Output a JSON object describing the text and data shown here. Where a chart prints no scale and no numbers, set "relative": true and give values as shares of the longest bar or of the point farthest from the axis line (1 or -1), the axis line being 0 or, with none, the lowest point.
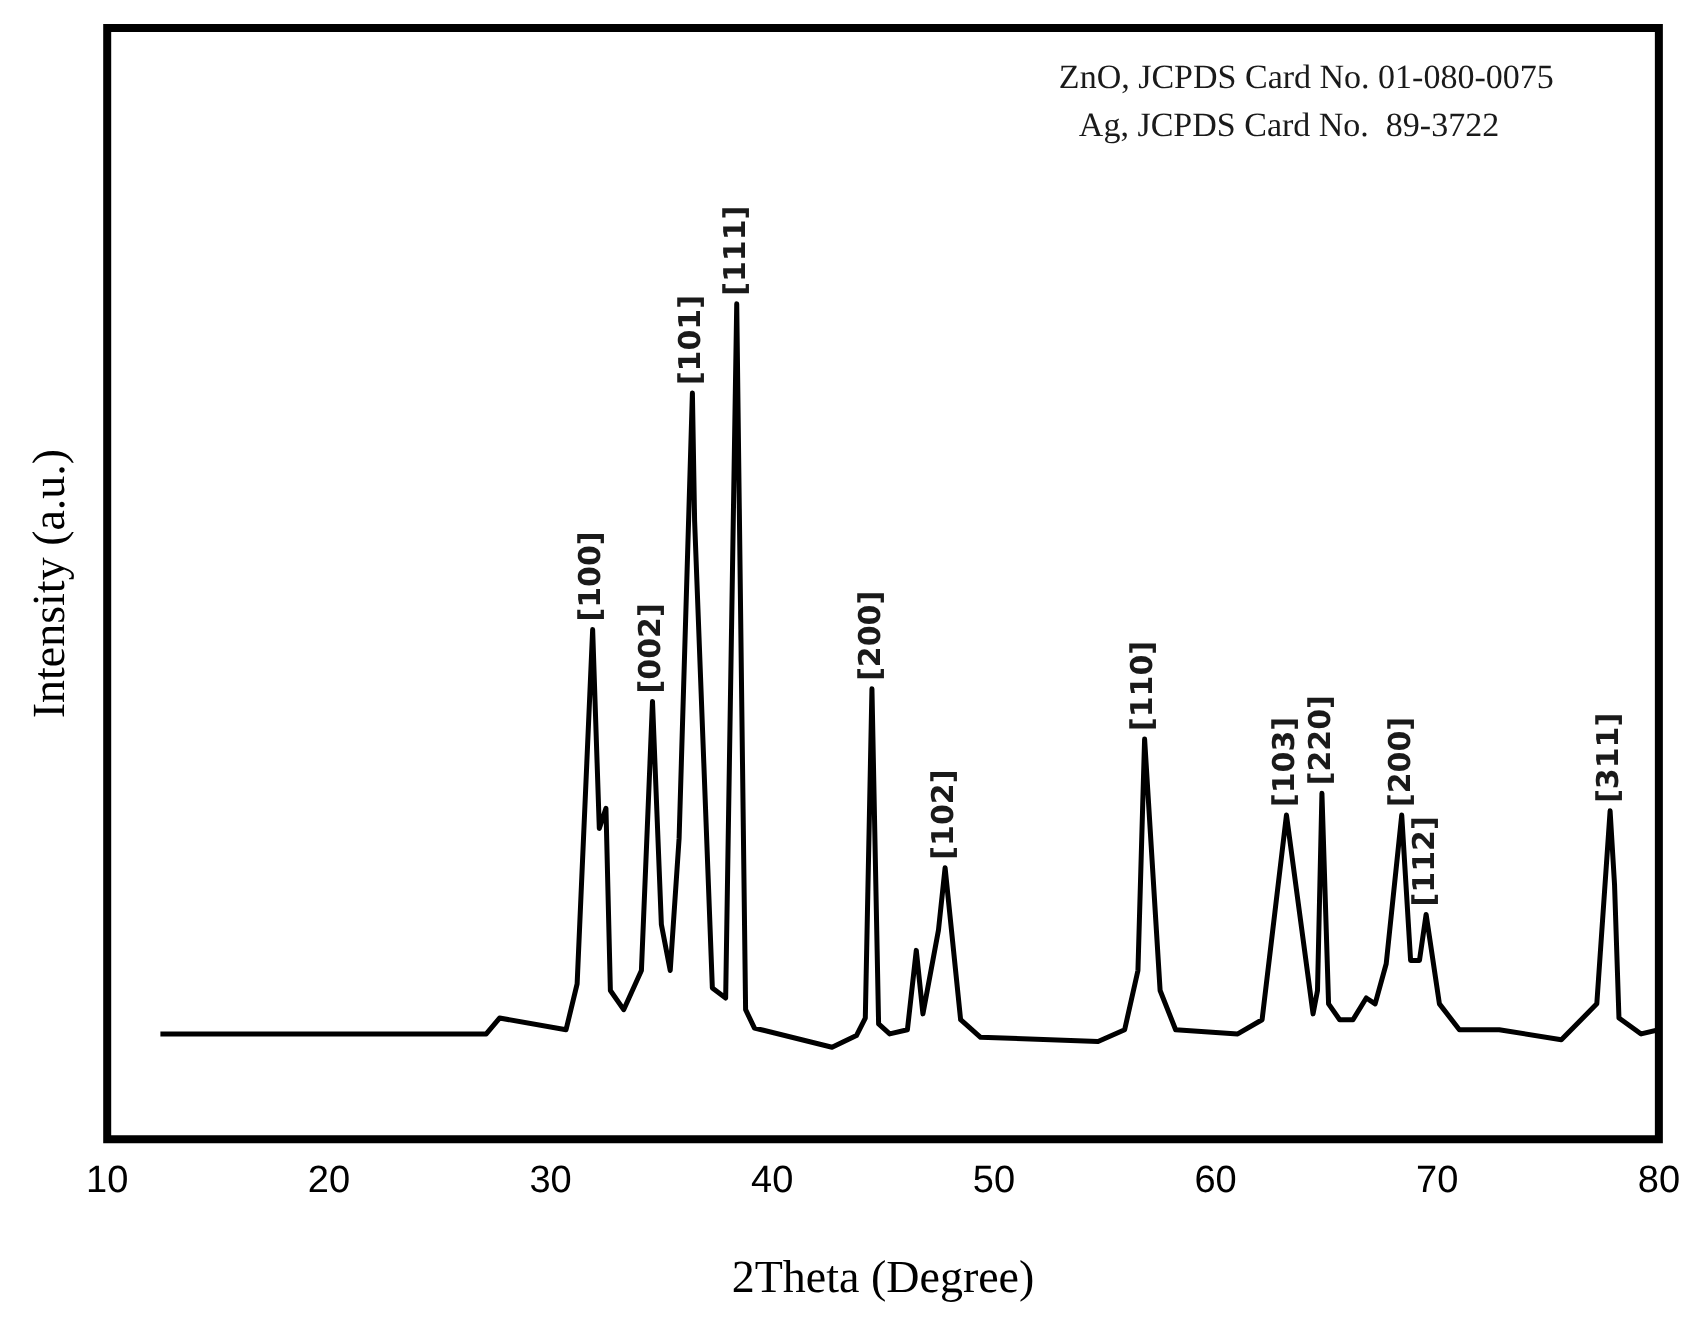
{
  "chart_data": {
    "type": "line",
    "xlabel": "2Theta (Degree)",
    "ylabel": "Intensity (a.u.)",
    "relative": true,
    "xlim": [
      10,
      80
    ],
    "xticks": [
      10,
      20,
      30,
      40,
      50,
      60,
      70,
      80
    ],
    "tick_labels": "x",
    "grid": false,
    "marker": "none",
    "line_style": "solid",
    "series": [
      {
        "color": "#000000",
        "x": [
          12.4,
          27.1,
          27.7,
          30.7,
          31.2,
          31.9,
          32.2,
          32.5,
          32.7,
          33.3,
          34.1,
          34.6,
          35.0,
          35.4,
          35.8,
          36.4,
          36.5,
          37.3,
          37.9,
          38.4,
          38.8,
          39.2,
          42.7,
          43.8,
          44.2,
          44.5,
          44.8,
          45.3,
          46.1,
          46.5,
          46.8,
          47.5,
          47.8,
          48.5,
          49.4,
          54.7,
          55.9,
          56.5,
          56.8,
          57.5,
          58.2,
          61.0,
          62.1,
          63.2,
          64.4,
          64.6,
          64.8,
          65.1,
          65.6,
          66.2,
          66.8,
          67.2,
          67.7,
          68.4,
          68.8,
          69.2,
          69.5,
          70.1,
          71.0,
          72.8,
          75.6,
          77.2,
          77.8,
          78.0,
          78.2,
          79.2,
          80.0
        ],
        "values": [
          0.126,
          0.126,
          0.145,
          0.131,
          0.186,
          0.61,
          0.372,
          0.396,
          0.178,
          0.155,
          0.202,
          0.524,
          0.257,
          0.202,
          0.36,
          0.893,
          0.74,
          0.181,
          0.169,
          1.0,
          0.155,
          0.133,
          0.11,
          0.124,
          0.145,
          0.539,
          0.138,
          0.126,
          0.131,
          0.226,
          0.15,
          0.25,
          0.325,
          0.143,
          0.122,
          0.117,
          0.131,
          0.202,
          0.479,
          0.178,
          0.131,
          0.126,
          0.143,
          0.388,
          0.15,
          0.178,
          0.414,
          0.162,
          0.143,
          0.143,
          0.169,
          0.162,
          0.21,
          0.388,
          0.214,
          0.214,
          0.269,
          0.162,
          0.131,
          0.131,
          0.119,
          0.162,
          0.393,
          0.305,
          0.145,
          0.126,
          0.131
        ]
      }
    ],
    "annotations": [
      "ZnO, JCPDS Card No. 01-080-0075",
      "Ag, JCPDS Card No.  89-3722",
      {
        "text": "[100]",
        "x": 31.9,
        "y": 0.61
      },
      {
        "text": "[002]",
        "x": 34.6,
        "y": 0.524
      },
      {
        "text": "[101]",
        "x": 36.4,
        "y": 0.893
      },
      {
        "text": "[111]",
        "x": 38.4,
        "y": 1.0
      },
      {
        "text": "[200]",
        "x": 44.5,
        "y": 0.539
      },
      {
        "text": "[102]",
        "x": 47.8,
        "y": 0.325
      },
      {
        "text": "[110]",
        "x": 56.8,
        "y": 0.479
      },
      {
        "text": "[103]",
        "x": 63.2,
        "y": 0.388
      },
      {
        "text": "[220]",
        "x": 64.8,
        "y": 0.414
      },
      {
        "text": "[200]",
        "x": 68.4,
        "y": 0.388
      },
      {
        "text": "[112]",
        "x": 69.5,
        "y": 0.269
      },
      {
        "text": "[311]",
        "x": 77.8,
        "y": 0.393
      }
    ]
  }
}
